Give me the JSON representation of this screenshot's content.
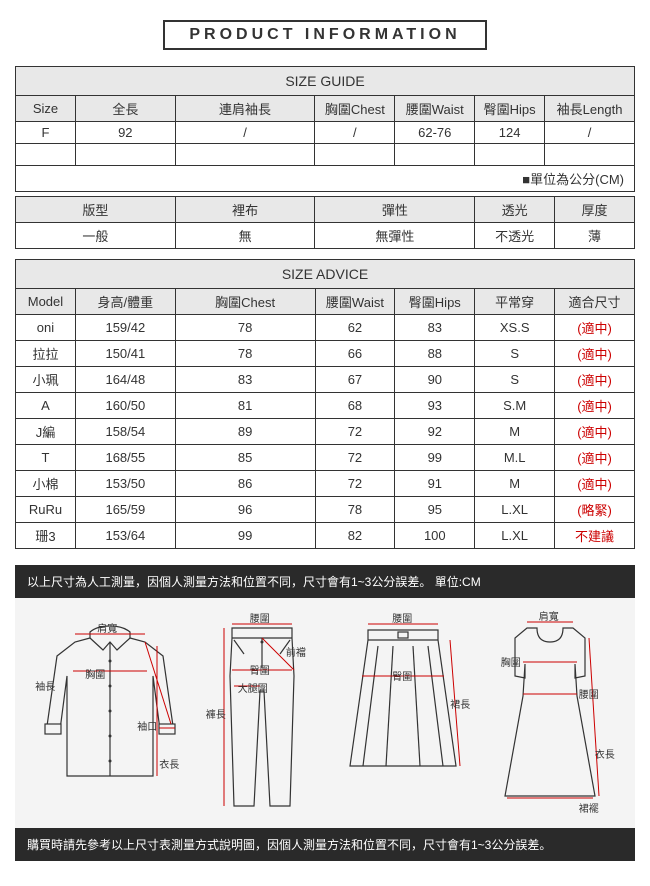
{
  "title": "PRODUCT INFORMATION",
  "size_guide": {
    "header": "SIZE GUIDE",
    "columns": [
      "Size",
      "全長",
      "連肩袖長",
      "胸圍Chest",
      "腰圍Waist",
      "臀圍Hips",
      "袖長Length"
    ],
    "row": [
      "F",
      "92",
      "/",
      "/",
      "62-76",
      "124",
      "/"
    ],
    "unit_note": "■單位為公分(CM)"
  },
  "properties": {
    "columns": [
      "版型",
      "裡布",
      "彈性",
      "透光",
      "厚度"
    ],
    "values": [
      "一般",
      "無",
      "無彈性",
      "不透光",
      "薄"
    ]
  },
  "size_advice": {
    "header": "SIZE ADVICE",
    "columns": [
      "Model",
      "身高/體重",
      "胸圍Chest",
      "腰圍Waist",
      "臀圍Hips",
      "平常穿",
      "適合尺寸"
    ],
    "rows": [
      [
        "oni",
        "159/42",
        "78",
        "62",
        "83",
        "XS.S",
        "(適中)"
      ],
      [
        "拉拉",
        "150/41",
        "78",
        "66",
        "88",
        "S",
        "(適中)"
      ],
      [
        "小珮",
        "164/48",
        "83",
        "67",
        "90",
        "S",
        "(適中)"
      ],
      [
        "A",
        "160/50",
        "81",
        "68",
        "93",
        "S.M",
        "(適中)"
      ],
      [
        "J編",
        "158/54",
        "89",
        "72",
        "92",
        "M",
        "(適中)"
      ],
      [
        "T",
        "168/55",
        "85",
        "72",
        "99",
        "M.L",
        "(適中)"
      ],
      [
        "小棉",
        "153/50",
        "86",
        "72",
        "91",
        "M",
        "(適中)"
      ],
      [
        "RuRu",
        "165/59",
        "96",
        "78",
        "95",
        "L.XL",
        "(略緊)"
      ],
      [
        "珊3",
        "153/64",
        "99",
        "82",
        "100",
        "L.XL",
        "不建議"
      ]
    ]
  },
  "notice_top": "以上尺寸為人工測量，因個人測量方法和位置不同，尺寸會有1~3公分誤差。 單位:CM",
  "notice_bottom": "購買時請先參考以上尺寸表測量方式說明圖，因個人測量方法和位置不同，尺寸會有1~3公分誤差。",
  "labels": {
    "shoulder": "肩寬",
    "chest": "胸圍",
    "sleeve": "袖長",
    "cuff": "袖口",
    "length": "衣長",
    "waist": "腰圍",
    "hip": "臀圍",
    "thigh": "大腿圍",
    "front_rise": "前襠",
    "pant_length": "褲長",
    "skirt_length": "裙長",
    "hem": "裙襬"
  },
  "colors": {
    "border": "#333333",
    "header_bg": "#e8e8e8",
    "red": "#cc0000",
    "bar_bg": "#2a2a2a",
    "panel_bg": "#f4f4f4",
    "meas_line": "#c00"
  }
}
